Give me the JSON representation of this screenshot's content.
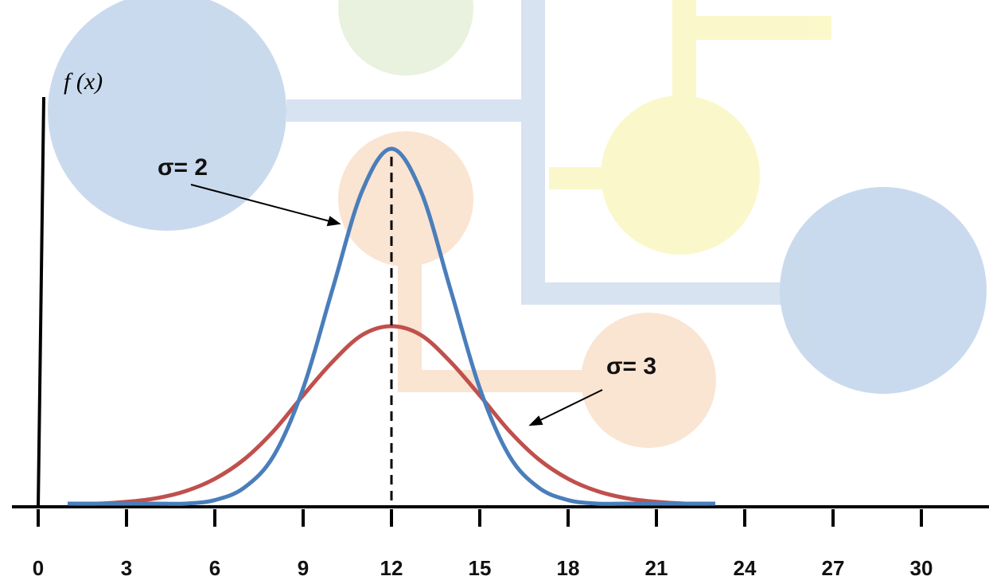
{
  "chart_data": {
    "type": "line",
    "y_label": "f (x)",
    "annotations": [
      "σ= 2",
      "σ= 3"
    ],
    "x": [
      1,
      2,
      3,
      4,
      5,
      6,
      7,
      8,
      9,
      10,
      11,
      12,
      13,
      14,
      15,
      16,
      17,
      18,
      19,
      20,
      21,
      22,
      23
    ],
    "series": [
      {
        "name": "σ= 2",
        "color": "#4a7ebb",
        "values": [
          0,
          0,
          0,
          0,
          0,
          0.002,
          0.009,
          0.027,
          0.065,
          0.121,
          0.176,
          0.2,
          0.176,
          0.121,
          0.065,
          0.027,
          0.009,
          0.002,
          0,
          0,
          0,
          0,
          0
        ]
      },
      {
        "name": "σ= 3",
        "color": "#c0504d",
        "values": [
          0,
          0,
          0.001,
          0.003,
          0.007,
          0.014,
          0.025,
          0.041,
          0.061,
          0.08,
          0.095,
          0.1,
          0.095,
          0.08,
          0.061,
          0.041,
          0.025,
          0.014,
          0.007,
          0.003,
          0.001,
          0,
          0
        ]
      }
    ],
    "mean_line": 12,
    "xlim": [
      0,
      30
    ],
    "xticks": [
      0,
      3,
      6,
      9,
      12,
      15,
      18,
      21,
      24,
      27,
      30
    ],
    "ylim": [
      0,
      0.2
    ]
  }
}
